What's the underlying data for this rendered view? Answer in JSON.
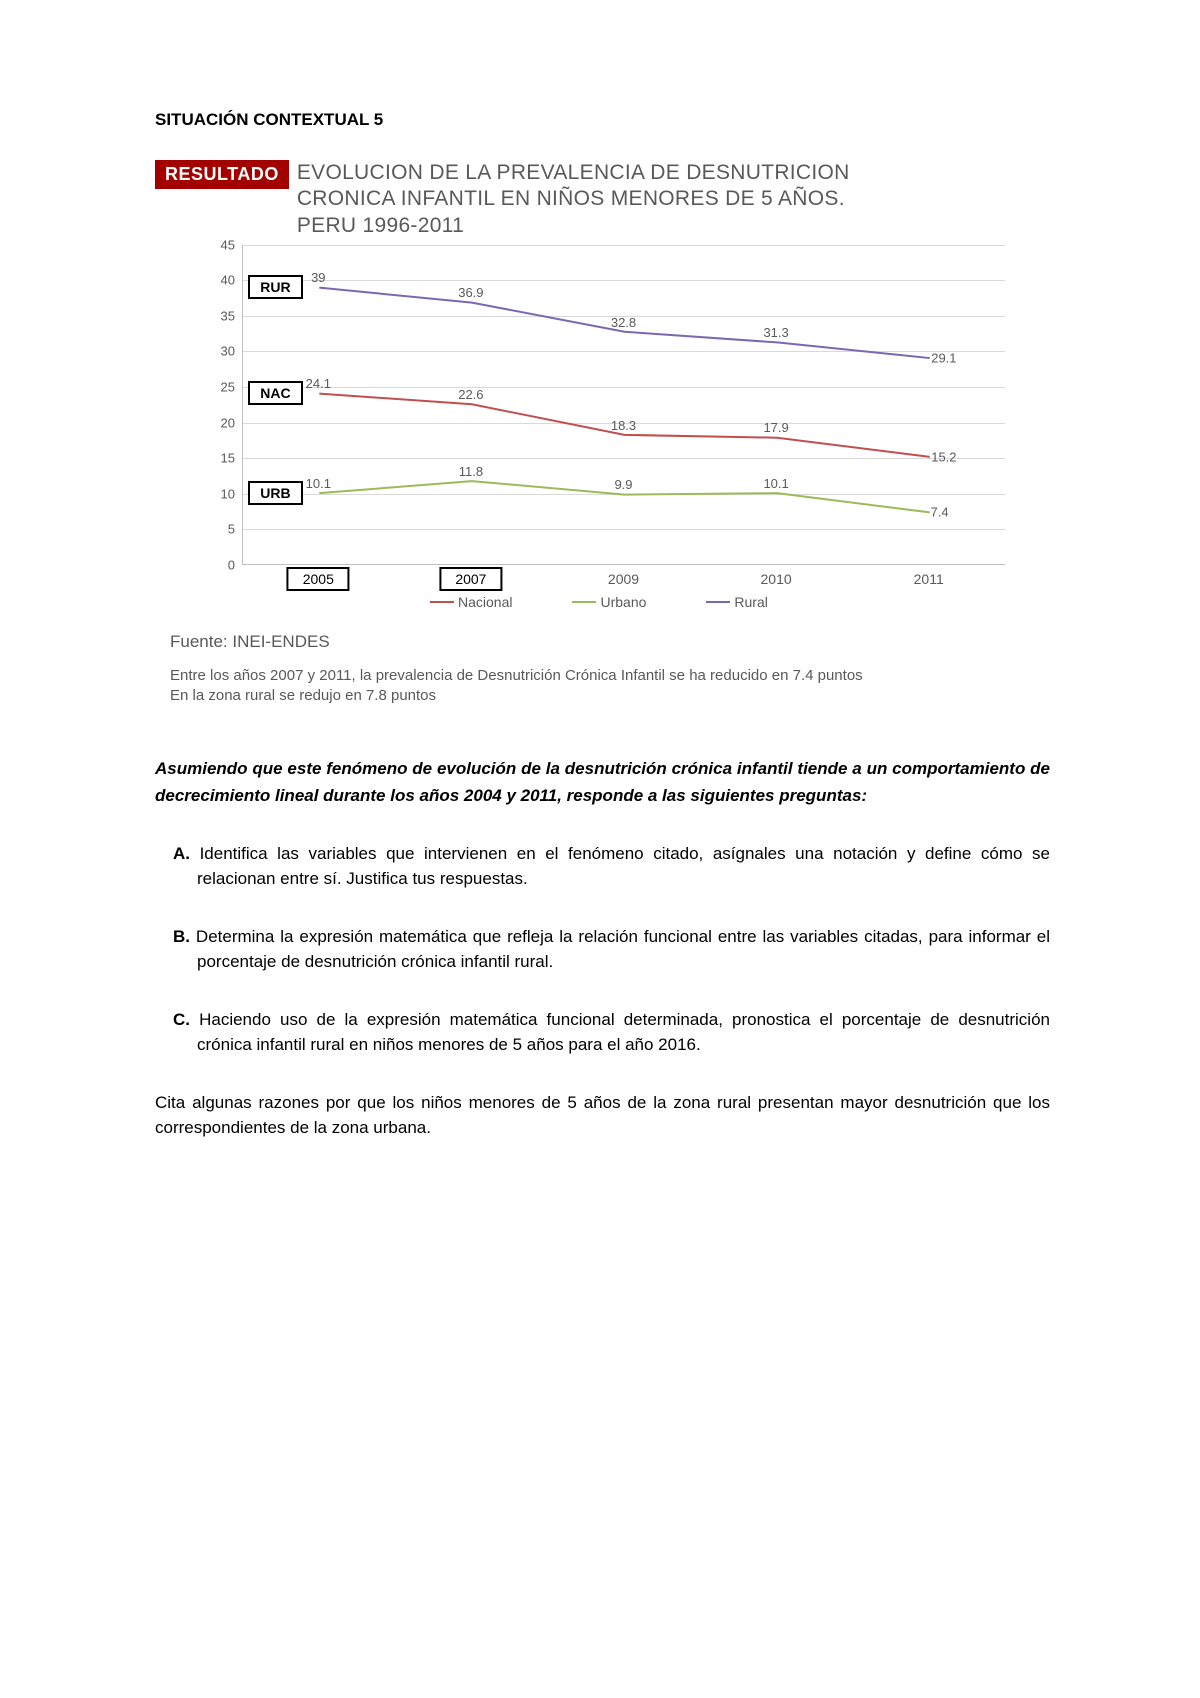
{
  "header": "SITUACIÓN CONTEXTUAL 5",
  "badge": "RESULTADO",
  "title_l1": "EVOLUCION DE LA PREVALENCIA DE DESNUTRICION",
  "title_l2": "CRONICA INFANTIL EN NIÑOS MENORES DE 5 AÑOS.",
  "title_l3": "PERU 1996-2011",
  "chart": {
    "ylim": [
      0,
      45
    ],
    "ytick_step": 5,
    "yticks": [
      0,
      5,
      10,
      15,
      20,
      25,
      30,
      35,
      40,
      45
    ],
    "x_categories": [
      "2005",
      "2007",
      "2009",
      "2010",
      "2011"
    ],
    "x_boxed": [
      true,
      true,
      false,
      false,
      false
    ],
    "series": {
      "rural": {
        "color": "#7b68b0",
        "values": [
          39,
          36.9,
          32.8,
          31.3,
          29.1
        ],
        "tag": "RUR"
      },
      "nacional": {
        "color": "#c0504d",
        "values": [
          24.1,
          22.6,
          18.3,
          17.9,
          15.2
        ],
        "tag": "NAC"
      },
      "urbano": {
        "color": "#9bbb59",
        "values": [
          10.1,
          11.8,
          9.9,
          10.1,
          7.4
        ],
        "tag": "URB"
      }
    },
    "legend": [
      {
        "label": "Nacional",
        "color": "#c0504d"
      },
      {
        "label": "Urbano",
        "color": "#9bbb59"
      },
      {
        "label": "Rural",
        "color": "#7b68b0"
      }
    ],
    "grid_color": "#d9d9d9",
    "axis_color": "#bfbfbf",
    "label_color": "#595959",
    "label_fontsize": 13
  },
  "source": "Fuente: INEI-ENDES",
  "note_l1": "Entre los años 2007 y 2011, la prevalencia de Desnutrición Crónica Infantil se ha reducido en 7.4 puntos",
  "note_l2": "En la zona rural se redujo en 7.8 puntos",
  "prompt": "Asumiendo que este fenómeno de evolución de la desnutrición crónica infantil tiende a un comportamiento de decrecimiento lineal durante los años 2004 y 2011, responde a las siguientes preguntas:",
  "questions": {
    "A": {
      "letter": "A.",
      "text": "Identifica las variables que intervienen en el fenómeno citado, asígnales una notación y define cómo se relacionan entre sí. Justifica tus respuestas."
    },
    "B": {
      "letter": "B.",
      "text": "Determina la expresión matemática que refleja la relación funcional entre las variables citadas, para informar el porcentaje de desnutrición crónica infantil rural."
    },
    "C": {
      "letter": "C.",
      "text": "Haciendo uso de la expresión matemática funcional determinada, pronostica el porcentaje de desnutrición crónica infantil rural en niños menores de 5 años para el año 2016."
    }
  },
  "closing": "Cita algunas razones por que los niños menores de 5 años de la zona rural presentan mayor desnutrición que los correspondientes de la zona urbana."
}
